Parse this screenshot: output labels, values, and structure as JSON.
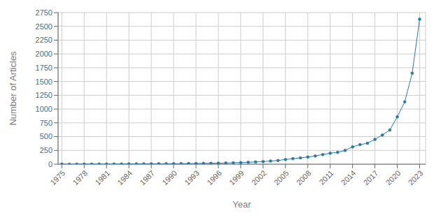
{
  "chart_data": {
    "type": "line",
    "xlabel": "Year",
    "ylabel": "Number of Articles",
    "x": [
      1975,
      1976,
      1977,
      1978,
      1979,
      1980,
      1981,
      1982,
      1983,
      1984,
      1985,
      1986,
      1987,
      1988,
      1989,
      1990,
      1991,
      1992,
      1993,
      1994,
      1995,
      1996,
      1997,
      1998,
      1999,
      2000,
      2001,
      2002,
      2003,
      2004,
      2005,
      2006,
      2007,
      2008,
      2009,
      2010,
      2011,
      2012,
      2013,
      2014,
      2015,
      2016,
      2017,
      2018,
      2019,
      2020,
      2021,
      2022,
      2023
    ],
    "values": [
      2,
      1,
      1,
      2,
      2,
      3,
      3,
      3,
      4,
      5,
      5,
      6,
      7,
      8,
      9,
      10,
      11,
      12,
      13,
      15,
      17,
      19,
      22,
      26,
      30,
      35,
      40,
      48,
      57,
      68,
      85,
      100,
      115,
      130,
      150,
      175,
      200,
      215,
      250,
      315,
      355,
      380,
      450,
      530,
      620,
      860,
      1130,
      1650,
      2630
    ],
    "color": "#2878a8",
    "marker": "circle",
    "xlim": [
      1974.5,
      2023.8
    ],
    "ylim": [
      0,
      2750
    ],
    "xticks": [
      1975,
      1978,
      1981,
      1984,
      1987,
      1990,
      1993,
      1996,
      1999,
      2002,
      2005,
      2008,
      2011,
      2014,
      2017,
      2020,
      2023
    ],
    "yticks": [
      0,
      250,
      500,
      750,
      1000,
      1250,
      1500,
      1750,
      2000,
      2250,
      2500,
      2750
    ],
    "grid": true
  }
}
